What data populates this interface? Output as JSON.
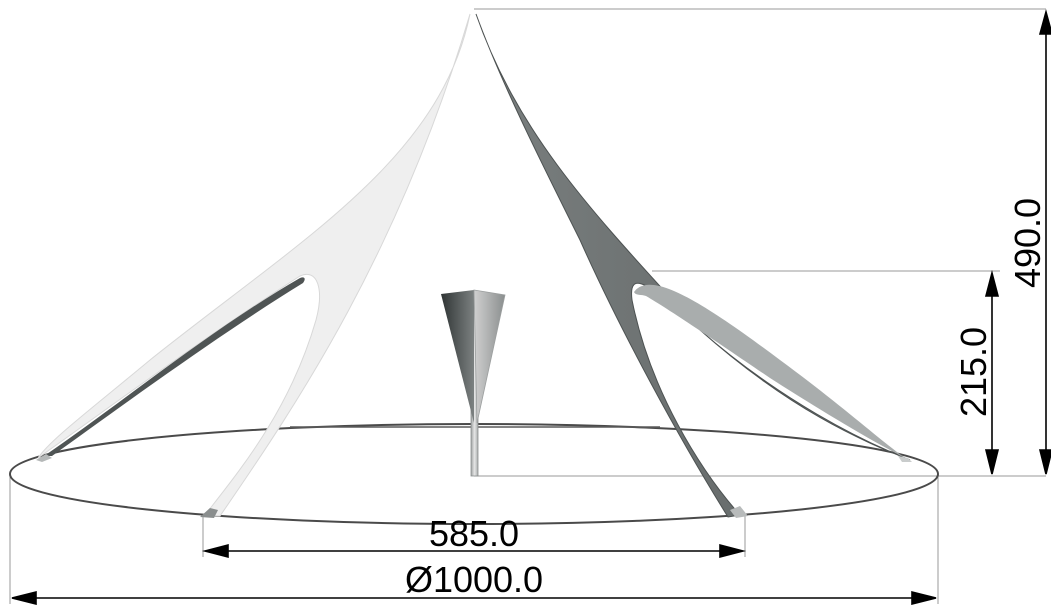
{
  "dimensions": {
    "height_total": "490.0",
    "height_arch": "215.0",
    "arch_span": "585.0",
    "diameter": "Ø1000.0"
  },
  "colors": {
    "background": "#ffffff",
    "canopy_light": "#efefef",
    "canopy_light_edge": "#d8d8d8",
    "canopy_dark": "#6f7474",
    "canopy_dark_edge": "#4d5252",
    "canopy_shadow": "#a9adad",
    "outline": "#4a4a4a",
    "dimension_line": "#000000",
    "extension_line": "#9a9a9a",
    "pole": "#b7b7b7"
  }
}
